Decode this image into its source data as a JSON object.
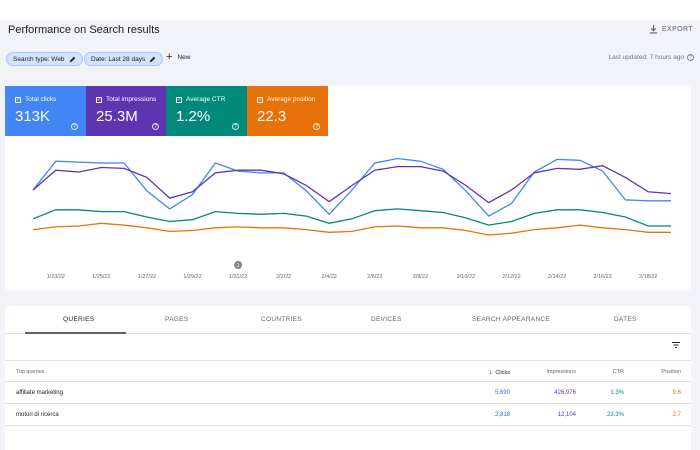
{
  "header": {
    "title": "Performance on Search results",
    "export_label": "EXPORT"
  },
  "filters": {
    "chips": [
      {
        "label": "Search type: Web"
      },
      {
        "label": "Date: Last 28 days"
      }
    ],
    "new_label": "New",
    "last_updated": "Last updated: 7 hours ago"
  },
  "metrics": [
    {
      "label": "Total clicks",
      "value": "313K",
      "color": "#4285f4"
    },
    {
      "label": "Total impressions",
      "value": "25.3M",
      "color": "#5e35b1"
    },
    {
      "label": "Average CTR",
      "value": "1.2%",
      "color": "#00897b"
    },
    {
      "label": "Average position",
      "value": "22.3",
      "color": "#e8710a"
    }
  ],
  "chart_data": {
    "type": "line",
    "x": [
      "1/22/22",
      "1/23/22",
      "1/24/22",
      "1/25/22",
      "1/26/22",
      "1/27/22",
      "1/28/22",
      "1/29/22",
      "1/30/22",
      "1/31/22",
      "2/1/22",
      "2/2/22",
      "2/3/22",
      "2/4/22",
      "2/5/22",
      "2/6/22",
      "2/7/22",
      "2/8/22",
      "2/9/22",
      "2/10/22",
      "2/11/22",
      "2/12/22",
      "2/13/22",
      "2/14/22",
      "2/15/22",
      "2/16/22",
      "2/17/22",
      "2/18/22",
      "2/19/22"
    ],
    "tick_labels": [
      "1/23/22",
      "1/25/22",
      "1/27/22",
      "1/29/22",
      "1/31/22",
      "2/2/22",
      "2/4/22",
      "2/6/22",
      "2/8/22",
      "2/10/22",
      "2/12/22",
      "2/14/22",
      "2/16/22",
      "2/18/22"
    ],
    "annotation_marker": "1",
    "normalized": true,
    "ylim": [
      0,
      100
    ],
    "grid": false,
    "series": [
      {
        "name": "Total clicks",
        "color": "#4285f4",
        "values": [
          60,
          92,
          91,
          90,
          90,
          59,
          39,
          55,
          90,
          81,
          79,
          79,
          59,
          33,
          60,
          90,
          95,
          92,
          83,
          59,
          31,
          45,
          80,
          94,
          93,
          81,
          49,
          48,
          48
        ]
      },
      {
        "name": "Total impressions",
        "color": "#5e35b1",
        "values": [
          60,
          82,
          80,
          85,
          84,
          74,
          51,
          58,
          79,
          82,
          82,
          78,
          65,
          47,
          65,
          82,
          86,
          86,
          81,
          65,
          46,
          60,
          79,
          84,
          83,
          87,
          74,
          58,
          56
        ]
      },
      {
        "name": "Average CTR",
        "color": "#00897b",
        "values": [
          28,
          38,
          38,
          36,
          36,
          30,
          25,
          27,
          36,
          34,
          33,
          34,
          31,
          23,
          28,
          37,
          39,
          37,
          35,
          29,
          21,
          25,
          34,
          38,
          38,
          35,
          30,
          20,
          20
        ]
      },
      {
        "name": "Average position",
        "color": "#e8710a",
        "values": [
          16,
          19,
          20,
          23,
          21,
          18,
          14,
          15,
          18,
          19,
          18,
          18,
          16,
          13,
          14,
          19,
          20,
          18,
          18,
          15,
          10,
          12,
          16,
          18,
          21,
          18,
          16,
          13,
          13
        ]
      }
    ]
  },
  "table": {
    "tabs": [
      "QUERIES",
      "PAGES",
      "COUNTRIES",
      "DEVICES",
      "SEARCH APPEARANCE",
      "DATES"
    ],
    "active_tab": 0,
    "headers": {
      "query": "Top queries",
      "clicks": "Clicks",
      "impressions": "Impressions",
      "ctr": "CTR",
      "position": "Position"
    },
    "sort_arrow": "↓",
    "rows": [
      {
        "query": "affiliate marketing",
        "clicks": "5,690",
        "impressions": "426,976",
        "ctr": "1.3%",
        "position": "9.6"
      },
      {
        "query": "motori di ricerca",
        "clicks": "2,818",
        "impressions": "12,104",
        "ctr": "23.3%",
        "position": "2.7"
      }
    ]
  }
}
